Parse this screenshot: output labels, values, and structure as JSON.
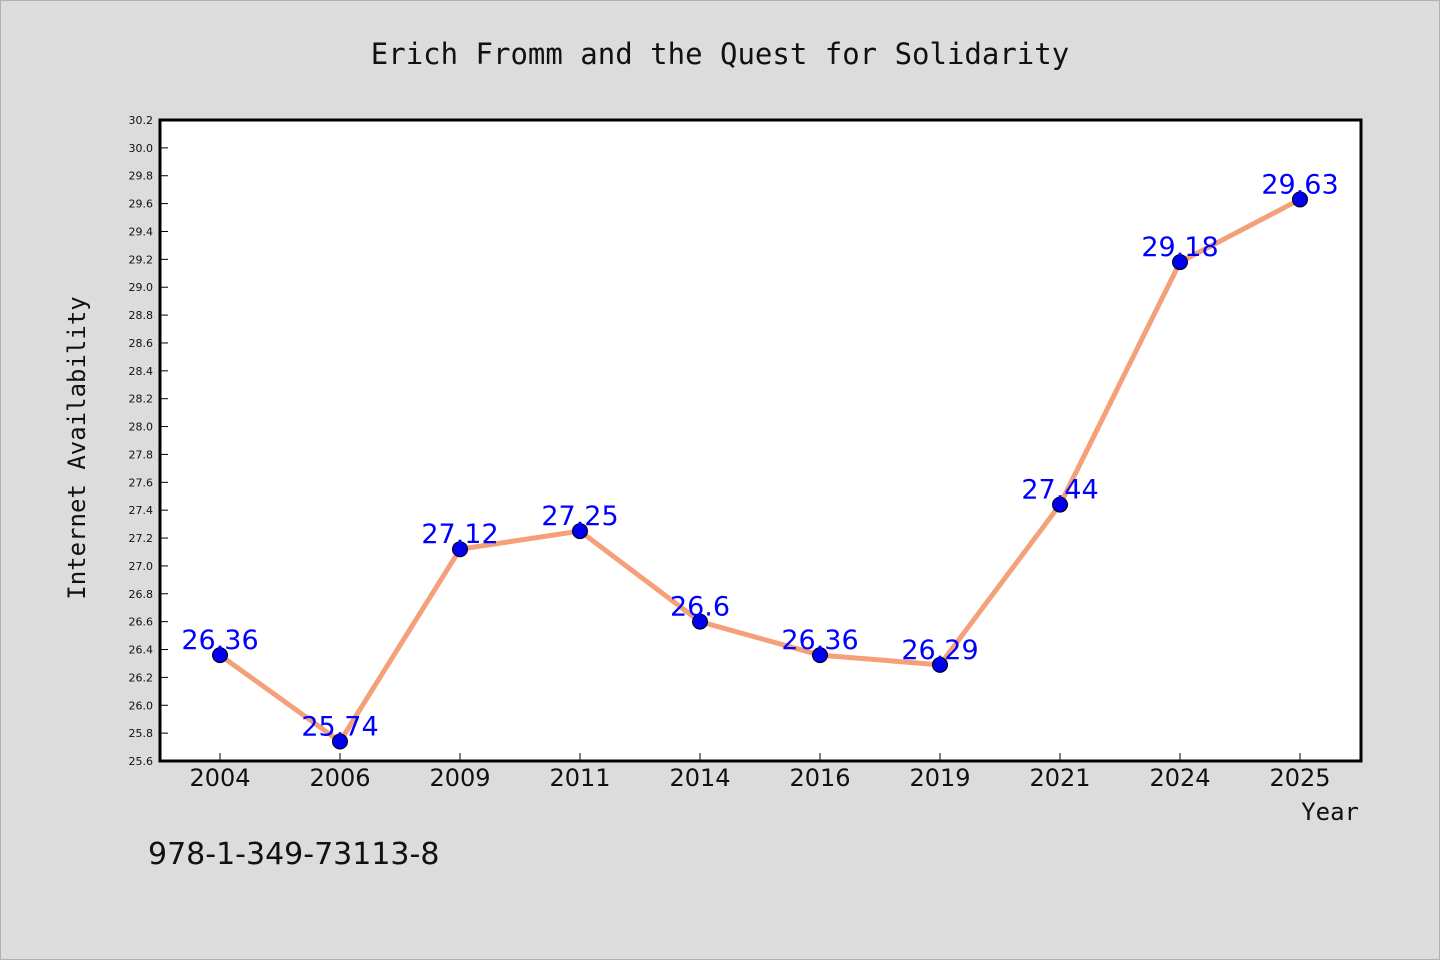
{
  "isbn": "978-1-349-73113-8",
  "chart_data": {
    "type": "line",
    "title": "Erich Fromm and the Quest for Solidarity",
    "xlabel": "Year",
    "ylabel": "Internet Availability",
    "categories": [
      "2004",
      "2006",
      "2009",
      "2011",
      "2014",
      "2016",
      "2019",
      "2021",
      "2024",
      "2025"
    ],
    "values": [
      26.36,
      25.74,
      27.12,
      27.25,
      26.6,
      26.36,
      26.29,
      27.44,
      29.18,
      29.63
    ],
    "data_labels": [
      "26.36",
      "25.74",
      "27.12",
      "27.25",
      "26.6",
      "26.36",
      "26.29",
      "27.44",
      "29.18",
      "29.63"
    ],
    "ylim": [
      25.6,
      30.2
    ],
    "yticks": [
      "25.6",
      "25.8",
      "26.0",
      "26.2",
      "26.4",
      "26.6",
      "26.8",
      "27.0",
      "27.2",
      "27.4",
      "27.6",
      "27.8",
      "28.0",
      "28.2",
      "28.4",
      "28.6",
      "28.8",
      "29.0",
      "29.2",
      "29.4",
      "29.6",
      "29.8",
      "30.0",
      "30.2"
    ],
    "grid": false,
    "legend": "none",
    "line_color": "#f4a07a",
    "marker_color": "#0000ee",
    "label_color": "#0000ff",
    "background_color": "#dcdcdc",
    "plot_background": "#ffffff"
  }
}
